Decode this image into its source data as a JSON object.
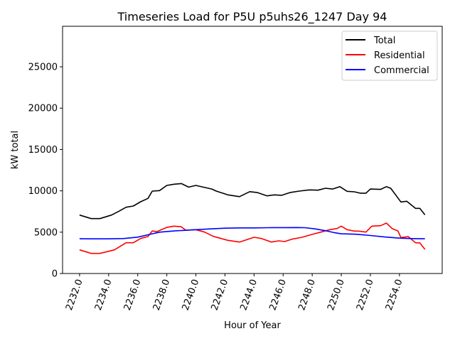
{
  "chart_data": {
    "type": "line",
    "title": "Timeseries Load for P5U p5uhs26_1247  Day 94",
    "xlabel": "Hour of Year",
    "ylabel": "kW total",
    "xlim": [
      2230.83,
      2256.94
    ],
    "ylim": [
      0,
      29900
    ],
    "xticks": [
      2232,
      2234,
      2236,
      2238,
      2240,
      2242,
      2244,
      2246,
      2248,
      2250,
      2252,
      2254
    ],
    "xtick_labels": [
      "2232.0",
      "2234.0",
      "2236.0",
      "2238.0",
      "2240.0",
      "2242.0",
      "2244.0",
      "2246.0",
      "2248.0",
      "2250.0",
      "2252.0",
      "2254.0"
    ],
    "yticks": [
      0,
      5000,
      10000,
      15000,
      20000,
      25000
    ],
    "ytick_labels": [
      "0",
      "5000",
      "10000",
      "15000",
      "20000",
      "25000"
    ],
    "grid": false,
    "legend_position": "top-right",
    "series": [
      {
        "name": "Total",
        "color": "#000000",
        "x": [
          2232,
          2232.8,
          2233.4,
          2234.2,
          2234.7,
          2235.2,
          2235.7,
          2236.2,
          2236.7,
          2237.0,
          2237.5,
          2238.0,
          2238.5,
          2239.0,
          2239.5,
          2240.0,
          2240.5,
          2241.1,
          2241.4,
          2242.2,
          2243.0,
          2243.7,
          2244.2,
          2244.9,
          2245.4,
          2245.9,
          2246.5,
          2247.1,
          2247.8,
          2248.4,
          2248.9,
          2249.4,
          2249.9,
          2250.4,
          2250.9,
          2251.3,
          2251.7,
          2252.0,
          2252.7,
          2253.1,
          2253.4,
          2254.1,
          2254.5,
          2255.1,
          2255.4,
          2255.75
        ],
        "y": [
          7070,
          6640,
          6640,
          7070,
          7530,
          8020,
          8160,
          8680,
          9080,
          9970,
          10030,
          10650,
          10800,
          10880,
          10450,
          10650,
          10450,
          10220,
          9970,
          9510,
          9300,
          9900,
          9800,
          9390,
          9510,
          9460,
          9800,
          9970,
          10110,
          10080,
          10310,
          10220,
          10510,
          9940,
          9880,
          9720,
          9720,
          10220,
          10170,
          10510,
          10310,
          8650,
          8740,
          7880,
          7880,
          7100
        ]
      },
      {
        "name": "Residential",
        "color": "#ff0000",
        "x": [
          2232,
          2232.8,
          2233.4,
          2234.4,
          2235.2,
          2235.7,
          2236.2,
          2236.7,
          2237.0,
          2237.3,
          2238.0,
          2238.5,
          2239.0,
          2239.3,
          2240.0,
          2240.6,
          2241.2,
          2242.2,
          2243.0,
          2244.0,
          2244.5,
          2245.2,
          2245.7,
          2246.1,
          2246.6,
          2247.3,
          2248.0,
          2248.6,
          2249.2,
          2249.7,
          2250.0,
          2250.4,
          2250.9,
          2251.2,
          2251.7,
          2252.1,
          2252.7,
          2253.1,
          2253.5,
          2253.9,
          2254.1,
          2254.6,
          2255.1,
          2255.4,
          2255.75
        ],
        "y": [
          2860,
          2430,
          2430,
          2860,
          3720,
          3720,
          4240,
          4470,
          5150,
          5060,
          5580,
          5730,
          5650,
          5240,
          5300,
          5010,
          4490,
          4010,
          3810,
          4380,
          4240,
          3810,
          3950,
          3870,
          4150,
          4380,
          4730,
          5010,
          5300,
          5440,
          5730,
          5300,
          5130,
          5130,
          5010,
          5730,
          5780,
          6100,
          5440,
          5150,
          4350,
          4470,
          3720,
          3700,
          2920
        ]
      },
      {
        "name": "Commercial",
        "color": "#0000ff",
        "x": [
          2232,
          2233,
          2234,
          2235,
          2236,
          2237,
          2237.5,
          2238.5,
          2240,
          2241,
          2242,
          2243,
          2244,
          2245,
          2246,
          2247,
          2247.5,
          2248.2,
          2249,
          2249.5,
          2250,
          2251,
          2252,
          2253,
          2254,
          2255,
          2255.75
        ],
        "y": [
          4200,
          4190,
          4190,
          4230,
          4400,
          4800,
          5000,
          5150,
          5300,
          5400,
          5480,
          5520,
          5520,
          5540,
          5550,
          5560,
          5540,
          5400,
          5150,
          4950,
          4800,
          4750,
          4600,
          4420,
          4280,
          4220,
          4200
        ]
      }
    ]
  }
}
